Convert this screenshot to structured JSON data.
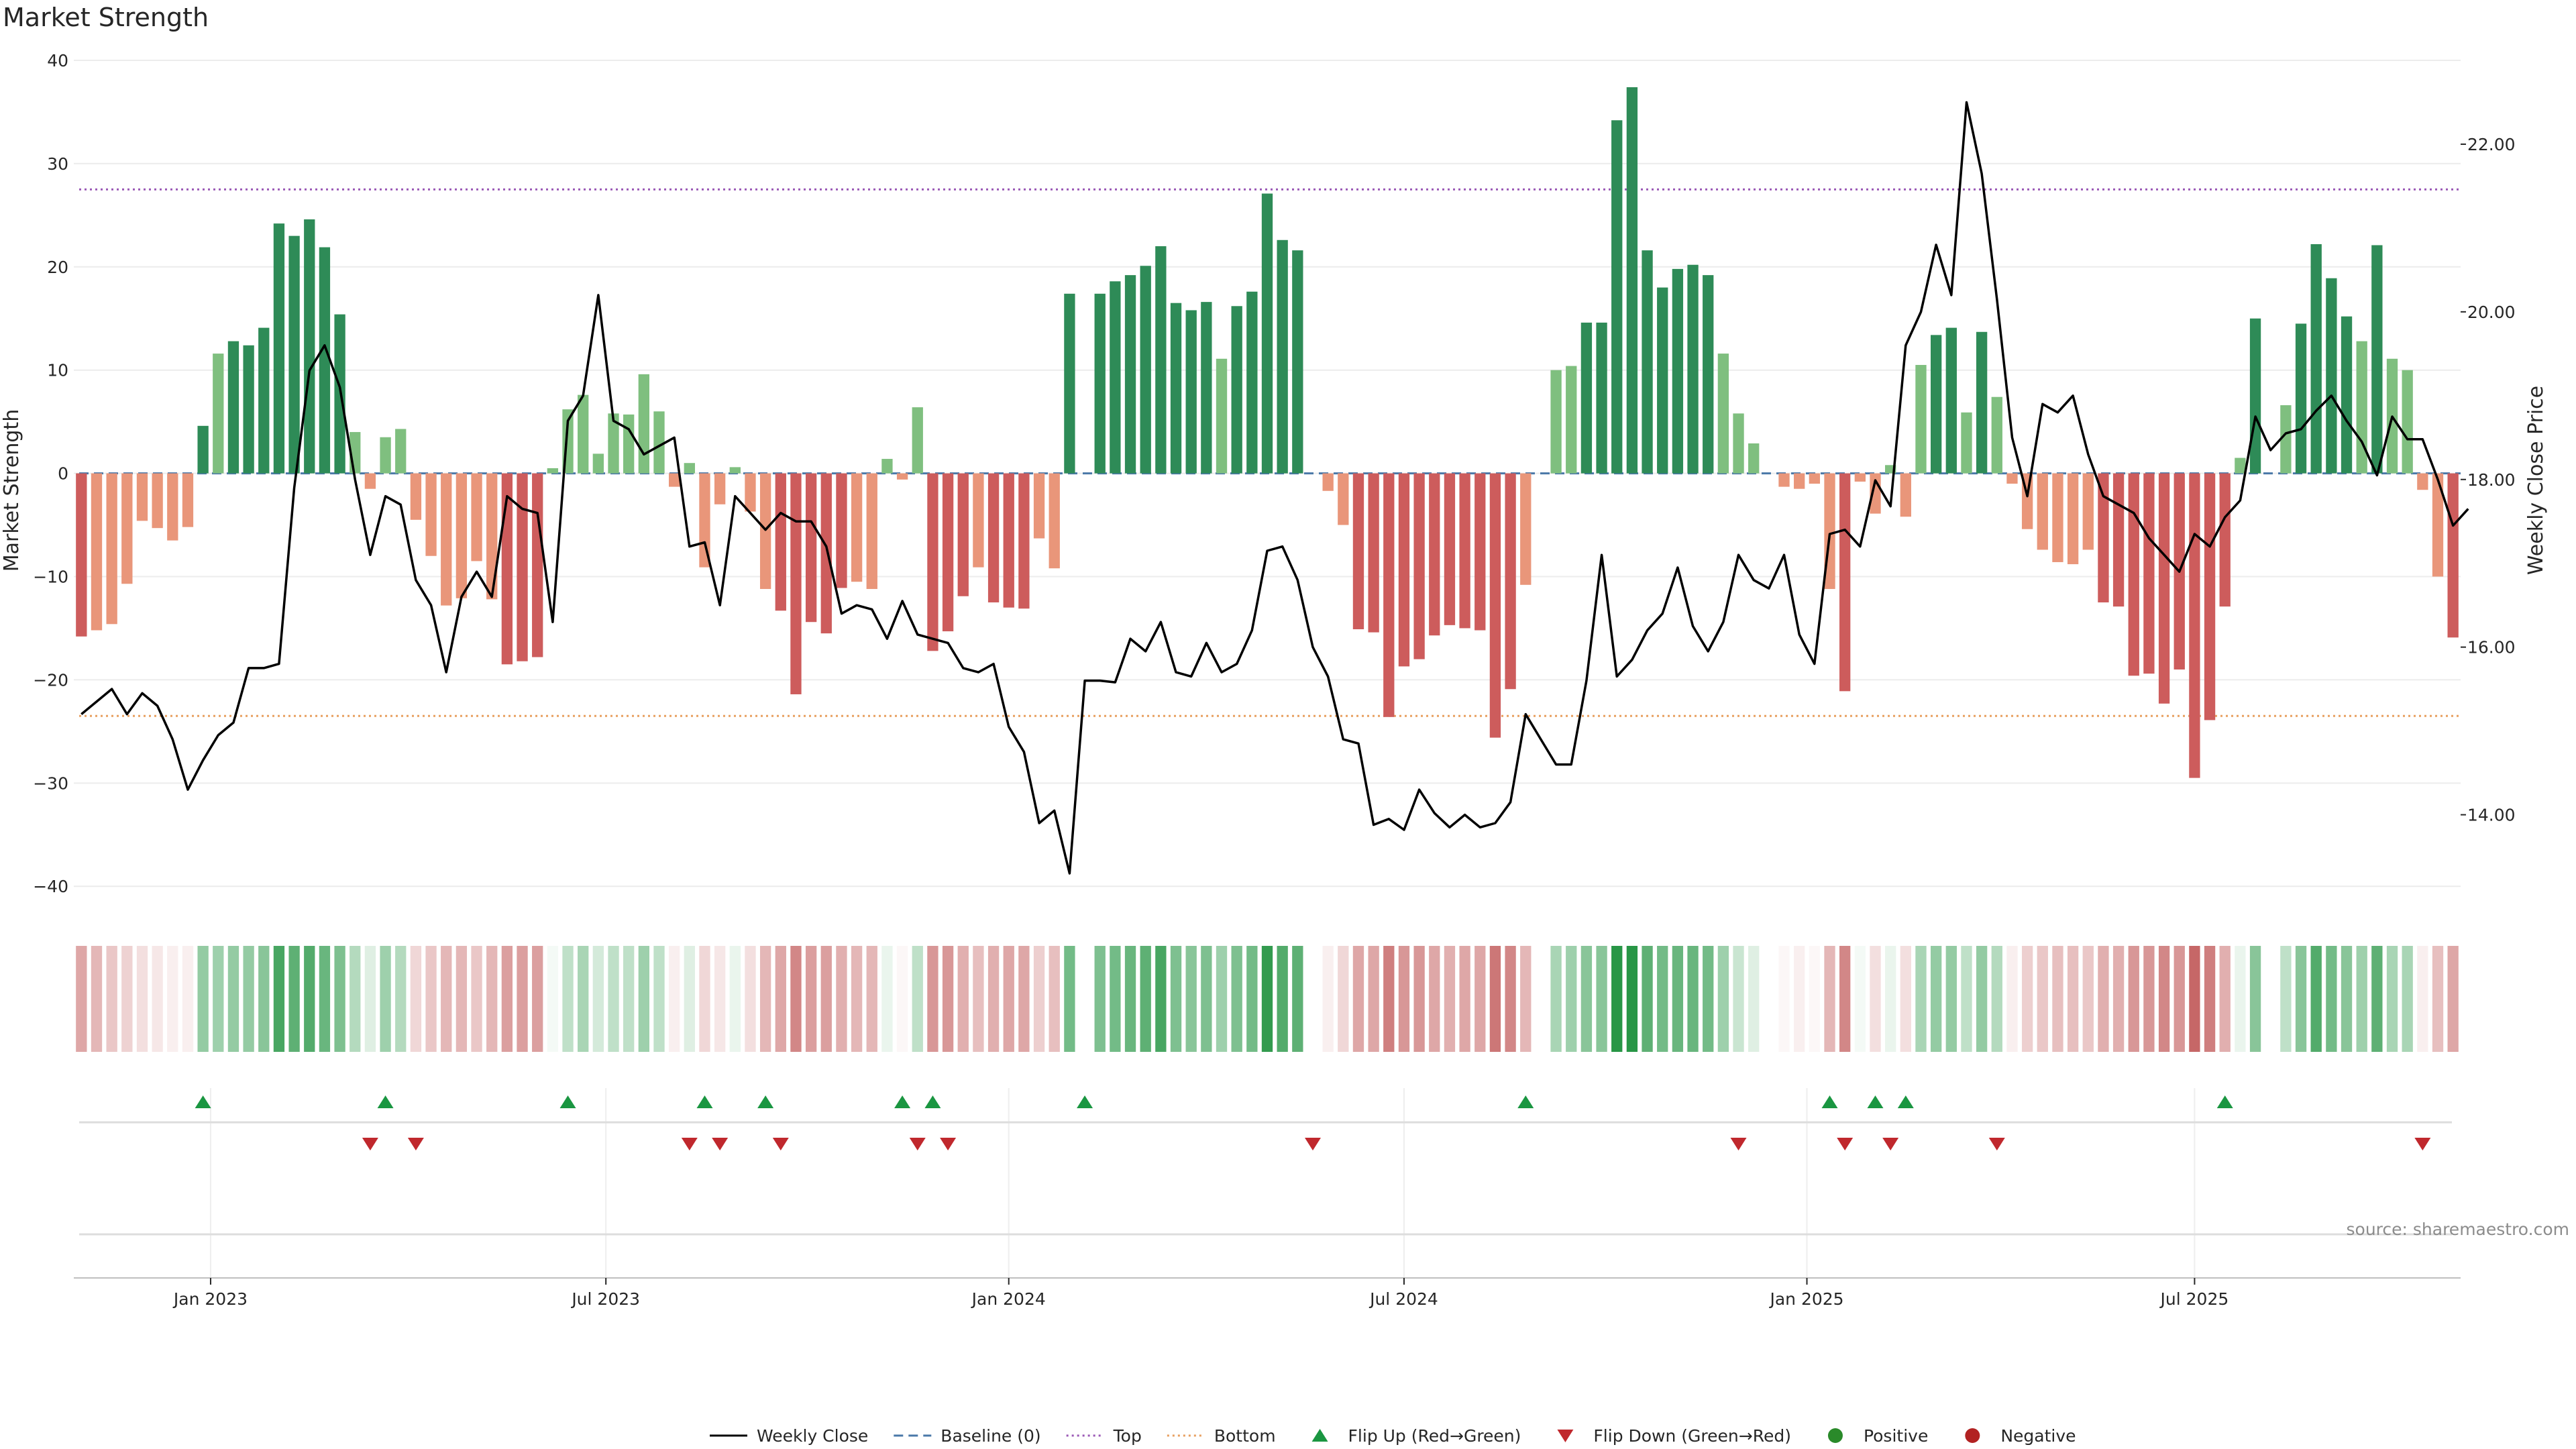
{
  "title": "Market Strength",
  "source_text": "source: sharemaestro.com",
  "colors": {
    "strong_green": "#2e8b57",
    "light_green": "#7fbf7f",
    "strong_red": "#cd5c5c",
    "light_red": "#e9967a",
    "line": "#000000",
    "baseline": "#4a78a8",
    "top": "#9b59b6",
    "bottom": "#e8a060",
    "flip_up": "#1a9641",
    "flip_down": "#c0282d"
  },
  "chart_data": {
    "type": "bar",
    "title": "Market Strength",
    "ylabel_left": "Market Strength",
    "ylabel_right": "Weekly Close Price",
    "ylim_left": [
      -42,
      40
    ],
    "ylim_right": [
      12.9,
      23.0
    ],
    "yticks_left": [
      "40",
      "30",
      "20",
      "10",
      "0",
      "−10",
      "−20",
      "−30",
      "−40"
    ],
    "ytick_values_left": [
      40,
      30,
      20,
      10,
      0,
      -10,
      -20,
      -30,
      -40
    ],
    "yticks_right": [
      "22.00",
      "20.00",
      "18.00",
      "16.00",
      "14.00"
    ],
    "ytick_values_right": [
      22,
      20,
      18,
      16,
      14
    ],
    "xticks": [
      "Jan 2023",
      "Jul 2023",
      "Jan 2024",
      "Jul 2024",
      "Jan 2025",
      "Jul 2025"
    ],
    "xtick_weeks": [
      9,
      35,
      61.5,
      87.5,
      114,
      139.5
    ],
    "top_level": 27.5,
    "bottom_level": -23.5,
    "bar_values": [
      -15.8,
      -15.2,
      -14.6,
      -10.7,
      -4.6,
      -5.3,
      -6.5,
      -5.2,
      4.6,
      11.6,
      12.8,
      12.4,
      14.1,
      24.2,
      23.0,
      24.6,
      21.9,
      15.4,
      4.0,
      -1.5,
      3.5,
      4.3,
      -4.5,
      -8.0,
      -12.8,
      -12.1,
      -8.5,
      -12.2,
      -18.5,
      -18.2,
      -17.8,
      0.5,
      6.2,
      7.6,
      1.9,
      5.8,
      5.7,
      9.6,
      6.0,
      -1.3,
      1.0,
      -9.1,
      -3.0,
      0.6,
      -3.7,
      -11.2,
      -13.3,
      -21.4,
      -14.4,
      -15.5,
      -11.1,
      -10.5,
      -11.2,
      1.4,
      -0.6,
      6.4,
      -17.2,
      -15.3,
      -11.9,
      -9.1,
      -12.5,
      -13.0,
      -13.1,
      -6.3,
      -9.2,
      17.4,
      0,
      17.4,
      18.6,
      19.2,
      20.1,
      22.0,
      16.5,
      15.8,
      16.6,
      11.1,
      16.2,
      17.6,
      27.1,
      22.6,
      21.6,
      0,
      -1.7,
      -5.0,
      -15.1,
      -15.4,
      -23.6,
      -18.7,
      -18.0,
      -15.7,
      -14.7,
      -15.0,
      -15.2,
      -25.6,
      -20.9,
      -10.8,
      0,
      10.0,
      10.4,
      14.6,
      14.6,
      34.2,
      37.4,
      21.6,
      18.0,
      19.8,
      20.2,
      19.2,
      11.6,
      5.8,
      2.9,
      0,
      -1.3,
      -1.5,
      -1.0,
      -11.2,
      -21.1,
      -0.8,
      -3.9,
      0.8,
      -4.2,
      10.5,
      13.4,
      14.1,
      5.9,
      13.7,
      7.4,
      -1.0,
      -5.4,
      -7.4,
      -8.6,
      -8.8,
      -7.4,
      -12.5,
      -12.9,
      -19.6,
      -19.4,
      -22.3,
      -19.0,
      -29.5,
      -23.9,
      -12.9,
      1.5,
      15.0,
      0,
      6.6,
      14.5,
      22.2,
      18.9,
      15.2,
      12.8,
      22.1,
      11.1,
      10.0,
      -1.6,
      -10.0,
      -15.9
    ],
    "close_values": [
      15.2,
      15.35,
      15.5,
      15.2,
      15.45,
      15.3,
      14.9,
      14.3,
      14.65,
      14.95,
      15.1,
      15.75,
      15.75,
      15.8,
      17.9,
      19.3,
      19.6,
      19.1,
      18.0,
      17.1,
      17.8,
      17.7,
      16.8,
      16.5,
      15.7,
      16.6,
      16.9,
      16.6,
      17.8,
      17.65,
      17.6,
      16.3,
      18.7,
      19.0,
      20.2,
      18.7,
      18.6,
      18.3,
      18.4,
      18.5,
      17.2,
      17.25,
      16.5,
      17.8,
      17.6,
      17.4,
      17.6,
      17.5,
      17.5,
      17.2,
      16.4,
      16.5,
      16.45,
      16.1,
      16.55,
      16.15,
      16.1,
      16.05,
      15.75,
      15.7,
      15.8,
      15.05,
      14.75,
      13.9,
      14.05,
      13.3,
      15.6,
      15.6,
      15.58,
      16.1,
      15.95,
      16.3,
      15.7,
      15.65,
      16.05,
      15.7,
      15.8,
      16.2,
      17.15,
      17.2,
      16.8,
      16.0,
      15.65,
      14.9,
      14.85,
      13.88,
      13.95,
      13.82,
      14.3,
      14.02,
      13.85,
      14.0,
      13.85,
      13.9,
      14.15,
      15.2,
      14.9,
      14.6,
      14.6,
      15.6,
      17.1,
      15.65,
      15.85,
      16.2,
      16.4,
      16.95,
      16.25,
      15.95,
      16.3,
      17.1,
      16.8,
      16.7,
      17.1,
      16.15,
      15.8,
      17.35,
      17.4,
      17.2,
      17.99,
      17.68,
      19.6,
      20.0,
      20.8,
      20.2,
      22.5,
      21.65,
      20.15,
      18.5,
      17.8,
      18.9,
      18.8,
      19.0,
      18.3,
      17.8,
      17.7,
      17.6,
      17.3,
      17.1,
      16.9,
      17.35,
      17.2,
      17.55,
      17.75,
      18.75,
      18.35,
      18.55,
      18.6,
      18.82,
      19.0,
      18.7,
      18.45,
      18.05,
      18.75,
      18.48,
      18.48,
      18.0,
      17.45,
      17.65
    ],
    "heat_shade": [
      -0.55,
      -0.45,
      -0.35,
      -0.28,
      -0.2,
      -0.15,
      -0.1,
      -0.1,
      0.5,
      0.45,
      0.5,
      0.5,
      0.55,
      0.85,
      0.75,
      0.8,
      0.7,
      0.6,
      0.35,
      0.15,
      0.45,
      0.35,
      -0.25,
      -0.35,
      -0.45,
      -0.45,
      -0.35,
      -0.45,
      -0.6,
      -0.6,
      -0.6,
      0.05,
      0.3,
      0.4,
      0.2,
      0.3,
      0.3,
      0.45,
      0.3,
      -0.1,
      0.15,
      -0.25,
      -0.15,
      0.1,
      -0.2,
      -0.45,
      -0.55,
      -0.75,
      -0.6,
      -0.6,
      -0.5,
      -0.45,
      -0.45,
      0.1,
      -0.05,
      0.3,
      -0.65,
      -0.65,
      -0.5,
      -0.4,
      -0.5,
      -0.55,
      -0.55,
      -0.3,
      -0.4,
      0.65,
      0,
      0.6,
      0.65,
      0.7,
      0.75,
      0.85,
      0.6,
      0.55,
      0.6,
      0.45,
      0.6,
      0.65,
      0.95,
      0.8,
      0.75,
      0,
      -0.1,
      -0.25,
      -0.55,
      -0.55,
      -0.8,
      -0.65,
      -0.65,
      -0.55,
      -0.5,
      -0.55,
      -0.55,
      -0.85,
      -0.75,
      -0.45,
      0,
      0.4,
      0.45,
      0.55,
      0.55,
      1.0,
      1.0,
      0.75,
      0.65,
      0.7,
      0.7,
      0.65,
      0.45,
      0.25,
      0.15,
      0,
      -0.05,
      -0.1,
      -0.05,
      -0.45,
      -0.75,
      0.05,
      -0.2,
      0.1,
      -0.2,
      0.4,
      0.5,
      0.5,
      0.3,
      0.5,
      0.35,
      -0.1,
      -0.3,
      -0.35,
      -0.4,
      -0.4,
      -0.35,
      -0.5,
      -0.5,
      -0.65,
      -0.65,
      -0.75,
      -0.65,
      -0.95,
      -0.8,
      -0.5,
      0.1,
      0.55,
      0,
      0.3,
      0.55,
      0.8,
      0.65,
      0.55,
      0.45,
      0.75,
      0.4,
      0.4,
      -0.1,
      -0.4,
      -0.55
    ],
    "flip_up_weeks": [
      8,
      20,
      32,
      41,
      45,
      54,
      56,
      66,
      95,
      115,
      118,
      120,
      141
    ],
    "flip_down_weeks": [
      19,
      22,
      40,
      42,
      46,
      55,
      57,
      81,
      109,
      116,
      119,
      126,
      154
    ]
  },
  "legend": [
    {
      "label": "Weekly Close",
      "kind": "solid-line",
      "color": "#000000"
    },
    {
      "label": "Baseline (0)",
      "kind": "dash-line",
      "color": "#4a78a8"
    },
    {
      "label": "Top",
      "kind": "dot-line",
      "color": "#9b59b6"
    },
    {
      "label": "Bottom",
      "kind": "dot-line",
      "color": "#e8a060"
    },
    {
      "label": "Flip Up (Red→Green)",
      "kind": "triangle-up",
      "color": "#1a9641"
    },
    {
      "label": "Flip Down (Green→Red)",
      "kind": "triangle-down",
      "color": "#c0282d"
    },
    {
      "label": "Positive",
      "kind": "circle",
      "color": "#2a8a2a"
    },
    {
      "label": "Negative",
      "kind": "circle",
      "color": "#b22222"
    }
  ]
}
